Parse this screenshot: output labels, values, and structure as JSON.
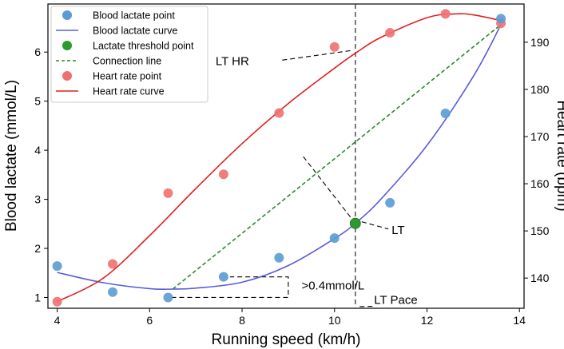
{
  "chart_data": {
    "type": "scatter",
    "xlabel": "Running speed (km/h)",
    "ylabel_left": "Blood lactate (mmol/L)",
    "ylabel_right": "Heart rate (bpm)",
    "xlim": [
      3.8,
      14.1
    ],
    "ylim_left": [
      0.78,
      6.98
    ],
    "ylim_right": [
      133.6,
      198.1
    ],
    "x_ticks": [
      4,
      6,
      8,
      10,
      12,
      14
    ],
    "y_left_ticks": [
      1,
      2,
      3,
      4,
      5,
      6
    ],
    "y_right_ticks": [
      140,
      150,
      160,
      170,
      180,
      190
    ],
    "colors": {
      "lactate": "#5a9bd4",
      "lactate_curve": "#5b5bdc",
      "threshold": "#2e9a2e",
      "connection": "#2a8a2a",
      "heart_rate": "#f07070",
      "heart_rate_curve": "#e02020",
      "guide": "#333333"
    },
    "series": [
      {
        "name": "Blood lactate point",
        "axis": "left",
        "x": [
          4.0,
          5.2,
          6.4,
          7.6,
          8.8,
          10.0,
          11.2,
          12.4,
          13.6
        ],
        "y": [
          1.64,
          1.11,
          1.0,
          1.42,
          1.81,
          2.21,
          2.93,
          4.75,
          6.68
        ]
      },
      {
        "name": "Heart rate point",
        "axis": "right",
        "x": [
          4.0,
          5.2,
          6.4,
          7.6,
          8.8,
          10.0,
          11.2,
          12.4,
          13.6
        ],
        "y": [
          135,
          143,
          158,
          162,
          175,
          189,
          192,
          196,
          194
        ]
      },
      {
        "name": "Blood lactate curve",
        "axis": "left",
        "x": [
          4.0,
          5.0,
          6.0,
          6.5,
          7.0,
          8.0,
          9.0,
          10.0,
          10.45,
          11.0,
          12.0,
          13.0,
          13.6
        ],
        "y": [
          1.51,
          1.3,
          1.18,
          1.17,
          1.19,
          1.31,
          1.65,
          2.2,
          2.51,
          3.0,
          4.1,
          5.5,
          6.56
        ]
      },
      {
        "name": "Heart rate curve",
        "axis": "right",
        "x": [
          4.0,
          5.0,
          6.0,
          7.0,
          8.0,
          9.0,
          10.0,
          10.5,
          11.0,
          12.0,
          12.6,
          13.0,
          13.6
        ],
        "y": [
          135,
          140,
          149,
          159,
          168.5,
          177,
          184.5,
          188,
          191,
          195.2,
          196,
          195.8,
          194.6
        ]
      },
      {
        "name": "Lactate threshold point",
        "axis": "left",
        "x": [
          10.45
        ],
        "y": [
          2.51
        ]
      },
      {
        "name": "Connection line",
        "axis": "left",
        "x": [
          6.5,
          13.6
        ],
        "y": [
          1.17,
          6.56
        ]
      }
    ],
    "lt_pace_x": 10.45,
    "perpendicular": {
      "from": [
        10.45,
        2.51
      ],
      "to": [
        9.3,
        3.9
      ]
    },
    "bracket": {
      "x_start": 6.4,
      "x_end": 9.0,
      "y_low": 1.0,
      "y_high": 1.42
    },
    "annotations": [
      {
        "text": "LT HR",
        "x": 7.6,
        "y_left": 5.82,
        "target": [
          10.45,
          188.6
        ]
      },
      {
        "text": "LT",
        "x": 11.2,
        "y_left": 2.46,
        "target": [
          10.45,
          2.51
        ]
      },
      {
        "text": ">0.4mmol/L",
        "x": 9.2,
        "y_left": 1.21
      },
      {
        "text": "LT Pace",
        "x": 11.2,
        "y_left": 0.95,
        "target": [
          10.45,
          0.78
        ]
      }
    ],
    "legend": {
      "position": "top-left",
      "entries": [
        {
          "label": "Blood lactate point",
          "kind": "marker",
          "color": "#5a9bd4"
        },
        {
          "label": "Blood lactate curve",
          "kind": "line",
          "color": "#5b5bdc"
        },
        {
          "label": "Lactate threshold point",
          "kind": "marker",
          "color": "#2e9a2e"
        },
        {
          "label": "Connection line",
          "kind": "dashed",
          "color": "#2a8a2a"
        },
        {
          "label": "Heart rate point",
          "kind": "marker",
          "color": "#f07070"
        },
        {
          "label": "Heart rate curve",
          "kind": "line",
          "color": "#e02020"
        }
      ]
    }
  }
}
